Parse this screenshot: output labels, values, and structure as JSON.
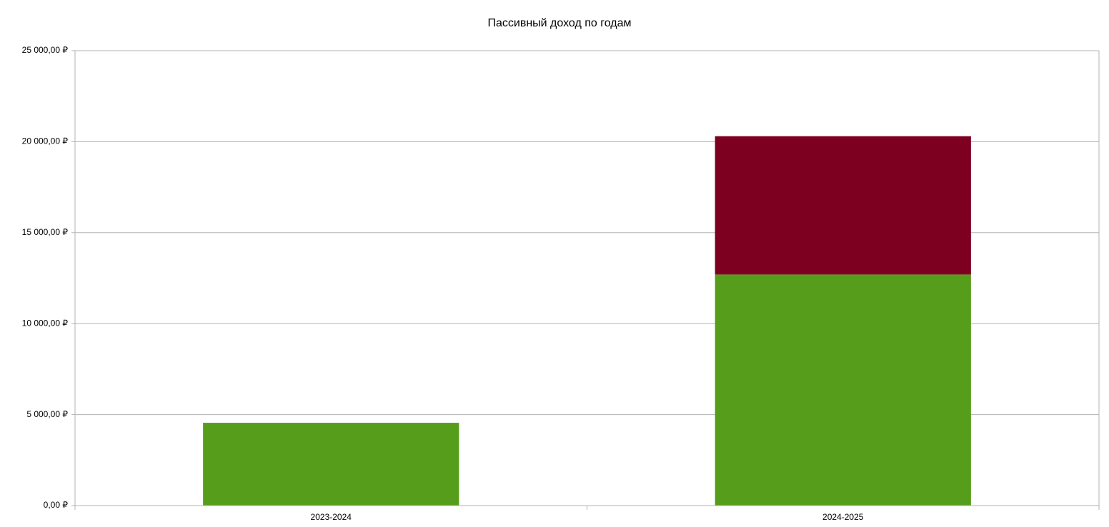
{
  "chart_data": {
    "type": "stacked-bar",
    "title": "Пассивный доход по годам",
    "categories": [
      "2023-2024",
      "2024-2025"
    ],
    "series": [
      {
        "color": "#579d1c",
        "values": [
          4550,
          12700
        ]
      },
      {
        "color": "#7e0021",
        "values": [
          null,
          7600
        ]
      }
    ],
    "ylim": [
      0,
      25000
    ],
    "yticks": [
      {
        "value": 0,
        "label": "0,00 ₽"
      },
      {
        "value": 5000,
        "label": "5 000,00 ₽"
      },
      {
        "value": 10000,
        "label": "10 000,00 ₽"
      },
      {
        "value": 15000,
        "label": "15 000,00 ₽"
      },
      {
        "value": 20000,
        "label": "20 000,00 ₽"
      },
      {
        "value": 25000,
        "label": "25 000,00 ₽"
      }
    ],
    "grid": true
  }
}
